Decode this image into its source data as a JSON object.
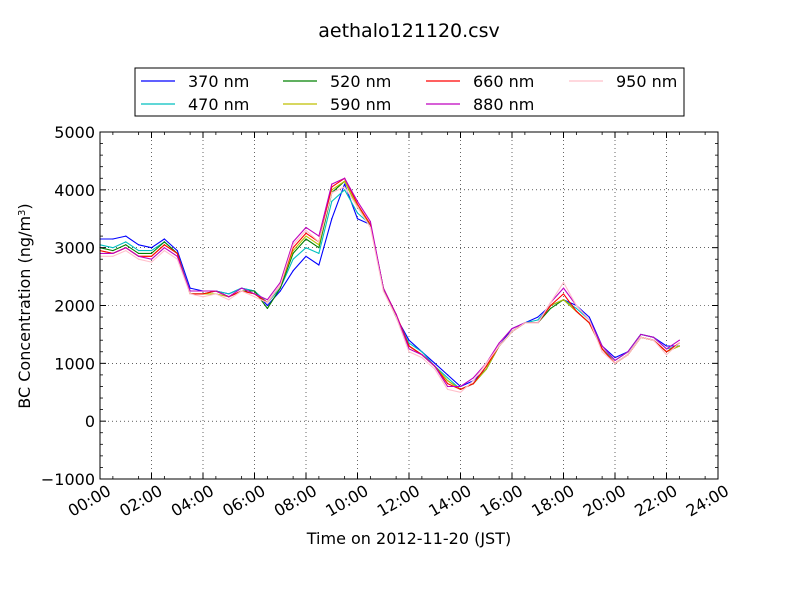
{
  "chart_data": {
    "type": "line",
    "title": "aethalo121120.csv",
    "xlabel": "Time on 2012-11-20 (JST)",
    "ylabel": "BC Concentration (ng/m³)",
    "ylabel_main": "BC Concentration (ng/m",
    "ylabel_sup": "3",
    "ylabel_end": ")",
    "xlim": [
      0,
      24
    ],
    "ylim": [
      -1000,
      5000
    ],
    "grid": true,
    "legend_placement": "top-center",
    "x_ticks": [
      {
        "value": 0,
        "label": "00:00"
      },
      {
        "value": 2,
        "label": "02:00"
      },
      {
        "value": 4,
        "label": "04:00"
      },
      {
        "value": 6,
        "label": "06:00"
      },
      {
        "value": 8,
        "label": "08:00"
      },
      {
        "value": 10,
        "label": "10:00"
      },
      {
        "value": 12,
        "label": "12:00"
      },
      {
        "value": 14,
        "label": "14:00"
      },
      {
        "value": 16,
        "label": "16:00"
      },
      {
        "value": 18,
        "label": "18:00"
      },
      {
        "value": 20,
        "label": "20:00"
      },
      {
        "value": 22,
        "label": "22:00"
      },
      {
        "value": 24,
        "label": "24:00"
      }
    ],
    "y_ticks": [
      {
        "value": -1000,
        "label": "−1000"
      },
      {
        "value": 0,
        "label": "0"
      },
      {
        "value": 1000,
        "label": "1000"
      },
      {
        "value": 2000,
        "label": "2000"
      },
      {
        "value": 3000,
        "label": "3000"
      },
      {
        "value": 4000,
        "label": "4000"
      },
      {
        "value": 5000,
        "label": "5000"
      }
    ],
    "x": [
      0,
      0.5,
      1,
      1.5,
      2,
      2.5,
      3,
      3.5,
      4,
      4.5,
      5,
      5.5,
      6,
      6.5,
      7,
      7.5,
      8,
      8.5,
      9,
      9.5,
      10,
      10.5,
      11,
      11.5,
      12,
      12.5,
      13,
      13.5,
      14,
      14.5,
      15,
      15.5,
      16,
      16.5,
      17,
      17.5,
      18,
      18.5,
      19,
      19.5,
      20,
      20.5,
      21,
      21.5,
      22,
      22.5
    ],
    "series": [
      {
        "name": "370 nm",
        "color": "#0000ff",
        "values": [
          3150,
          3150,
          3200,
          3050,
          3000,
          3150,
          2950,
          2300,
          2250,
          2250,
          2200,
          2300,
          2250,
          2000,
          2250,
          2600,
          2850,
          2700,
          3500,
          4100,
          3500,
          3400,
          2300,
          1800,
          1400,
          1200,
          1000,
          800,
          600,
          700,
          900,
          1300,
          1600,
          1700,
          1800,
          2000,
          2100,
          2000,
          1800,
          1300,
          1100,
          1200,
          1500,
          1450,
          1300,
          1300
        ]
      },
      {
        "name": "470 nm",
        "color": "#00bfbf",
        "values": [
          3050,
          3000,
          3100,
          2950,
          2950,
          3100,
          2900,
          2250,
          2250,
          2250,
          2200,
          2300,
          2250,
          2050,
          2300,
          2800,
          3000,
          2900,
          3800,
          4000,
          3600,
          3400,
          2300,
          1800,
          1350,
          1200,
          950,
          750,
          550,
          650,
          900,
          1300,
          1550,
          1700,
          1750,
          2000,
          2100,
          1950,
          1750,
          1250,
          1050,
          1200,
          1500,
          1450,
          1250,
          1300
        ]
      },
      {
        "name": "520 nm",
        "color": "#008000",
        "values": [
          3000,
          2950,
          3050,
          2900,
          2900,
          3100,
          2900,
          2200,
          2200,
          2250,
          2150,
          2250,
          2250,
          1950,
          2300,
          2900,
          3150,
          3000,
          3950,
          4150,
          3700,
          3400,
          2300,
          1800,
          1300,
          1150,
          950,
          700,
          550,
          650,
          900,
          1300,
          1550,
          1700,
          1700,
          1950,
          2100,
          1900,
          1700,
          1250,
          1000,
          1150,
          1450,
          1400,
          1200,
          1300
        ]
      },
      {
        "name": "590 nm",
        "color": "#bfbf00",
        "values": [
          2950,
          2900,
          3000,
          2850,
          2850,
          3050,
          2900,
          2200,
          2200,
          2200,
          2150,
          2250,
          2200,
          2050,
          2350,
          2950,
          3200,
          3050,
          4000,
          4150,
          3700,
          3400,
          2300,
          1800,
          1300,
          1150,
          950,
          700,
          550,
          650,
          900,
          1300,
          1550,
          1700,
          1700,
          2000,
          2100,
          1900,
          1700,
          1250,
          1000,
          1150,
          1450,
          1400,
          1200,
          1300
        ]
      },
      {
        "name": "660 nm",
        "color": "#ff0000",
        "values": [
          2950,
          2900,
          3000,
          2850,
          2850,
          3050,
          2900,
          2200,
          2200,
          2250,
          2150,
          2250,
          2200,
          2050,
          2350,
          3000,
          3250,
          3100,
          4050,
          4200,
          3750,
          3400,
          2300,
          1850,
          1300,
          1150,
          950,
          650,
          550,
          650,
          950,
          1300,
          1550,
          1700,
          1700,
          2000,
          2200,
          1900,
          1700,
          1250,
          1000,
          1150,
          1450,
          1400,
          1200,
          1350
        ]
      },
      {
        "name": "880 nm",
        "color": "#bf00bf",
        "values": [
          2900,
          2900,
          3000,
          2850,
          2800,
          3000,
          2850,
          2250,
          2250,
          2250,
          2150,
          2300,
          2200,
          2100,
          2400,
          3100,
          3350,
          3200,
          4100,
          4200,
          3800,
          3450,
          2300,
          1850,
          1250,
          1150,
          950,
          600,
          600,
          750,
          1000,
          1350,
          1600,
          1700,
          1700,
          2050,
          2300,
          2000,
          1750,
          1300,
          1050,
          1200,
          1500,
          1450,
          1250,
          1400
        ]
      },
      {
        "name": "950 nm",
        "color": "#ffc0cb",
        "values": [
          2850,
          2850,
          2950,
          2800,
          2750,
          2950,
          2800,
          2200,
          2150,
          2200,
          2100,
          2250,
          2150,
          2050,
          2350,
          3050,
          3300,
          3100,
          3950,
          4050,
          3700,
          3350,
          2250,
          1800,
          1200,
          1100,
          900,
          550,
          500,
          700,
          1000,
          1300,
          1550,
          1700,
          1700,
          2050,
          2400,
          2000,
          1750,
          1200,
          1000,
          1150,
          1450,
          1400,
          1150,
          1350
        ]
      }
    ]
  }
}
